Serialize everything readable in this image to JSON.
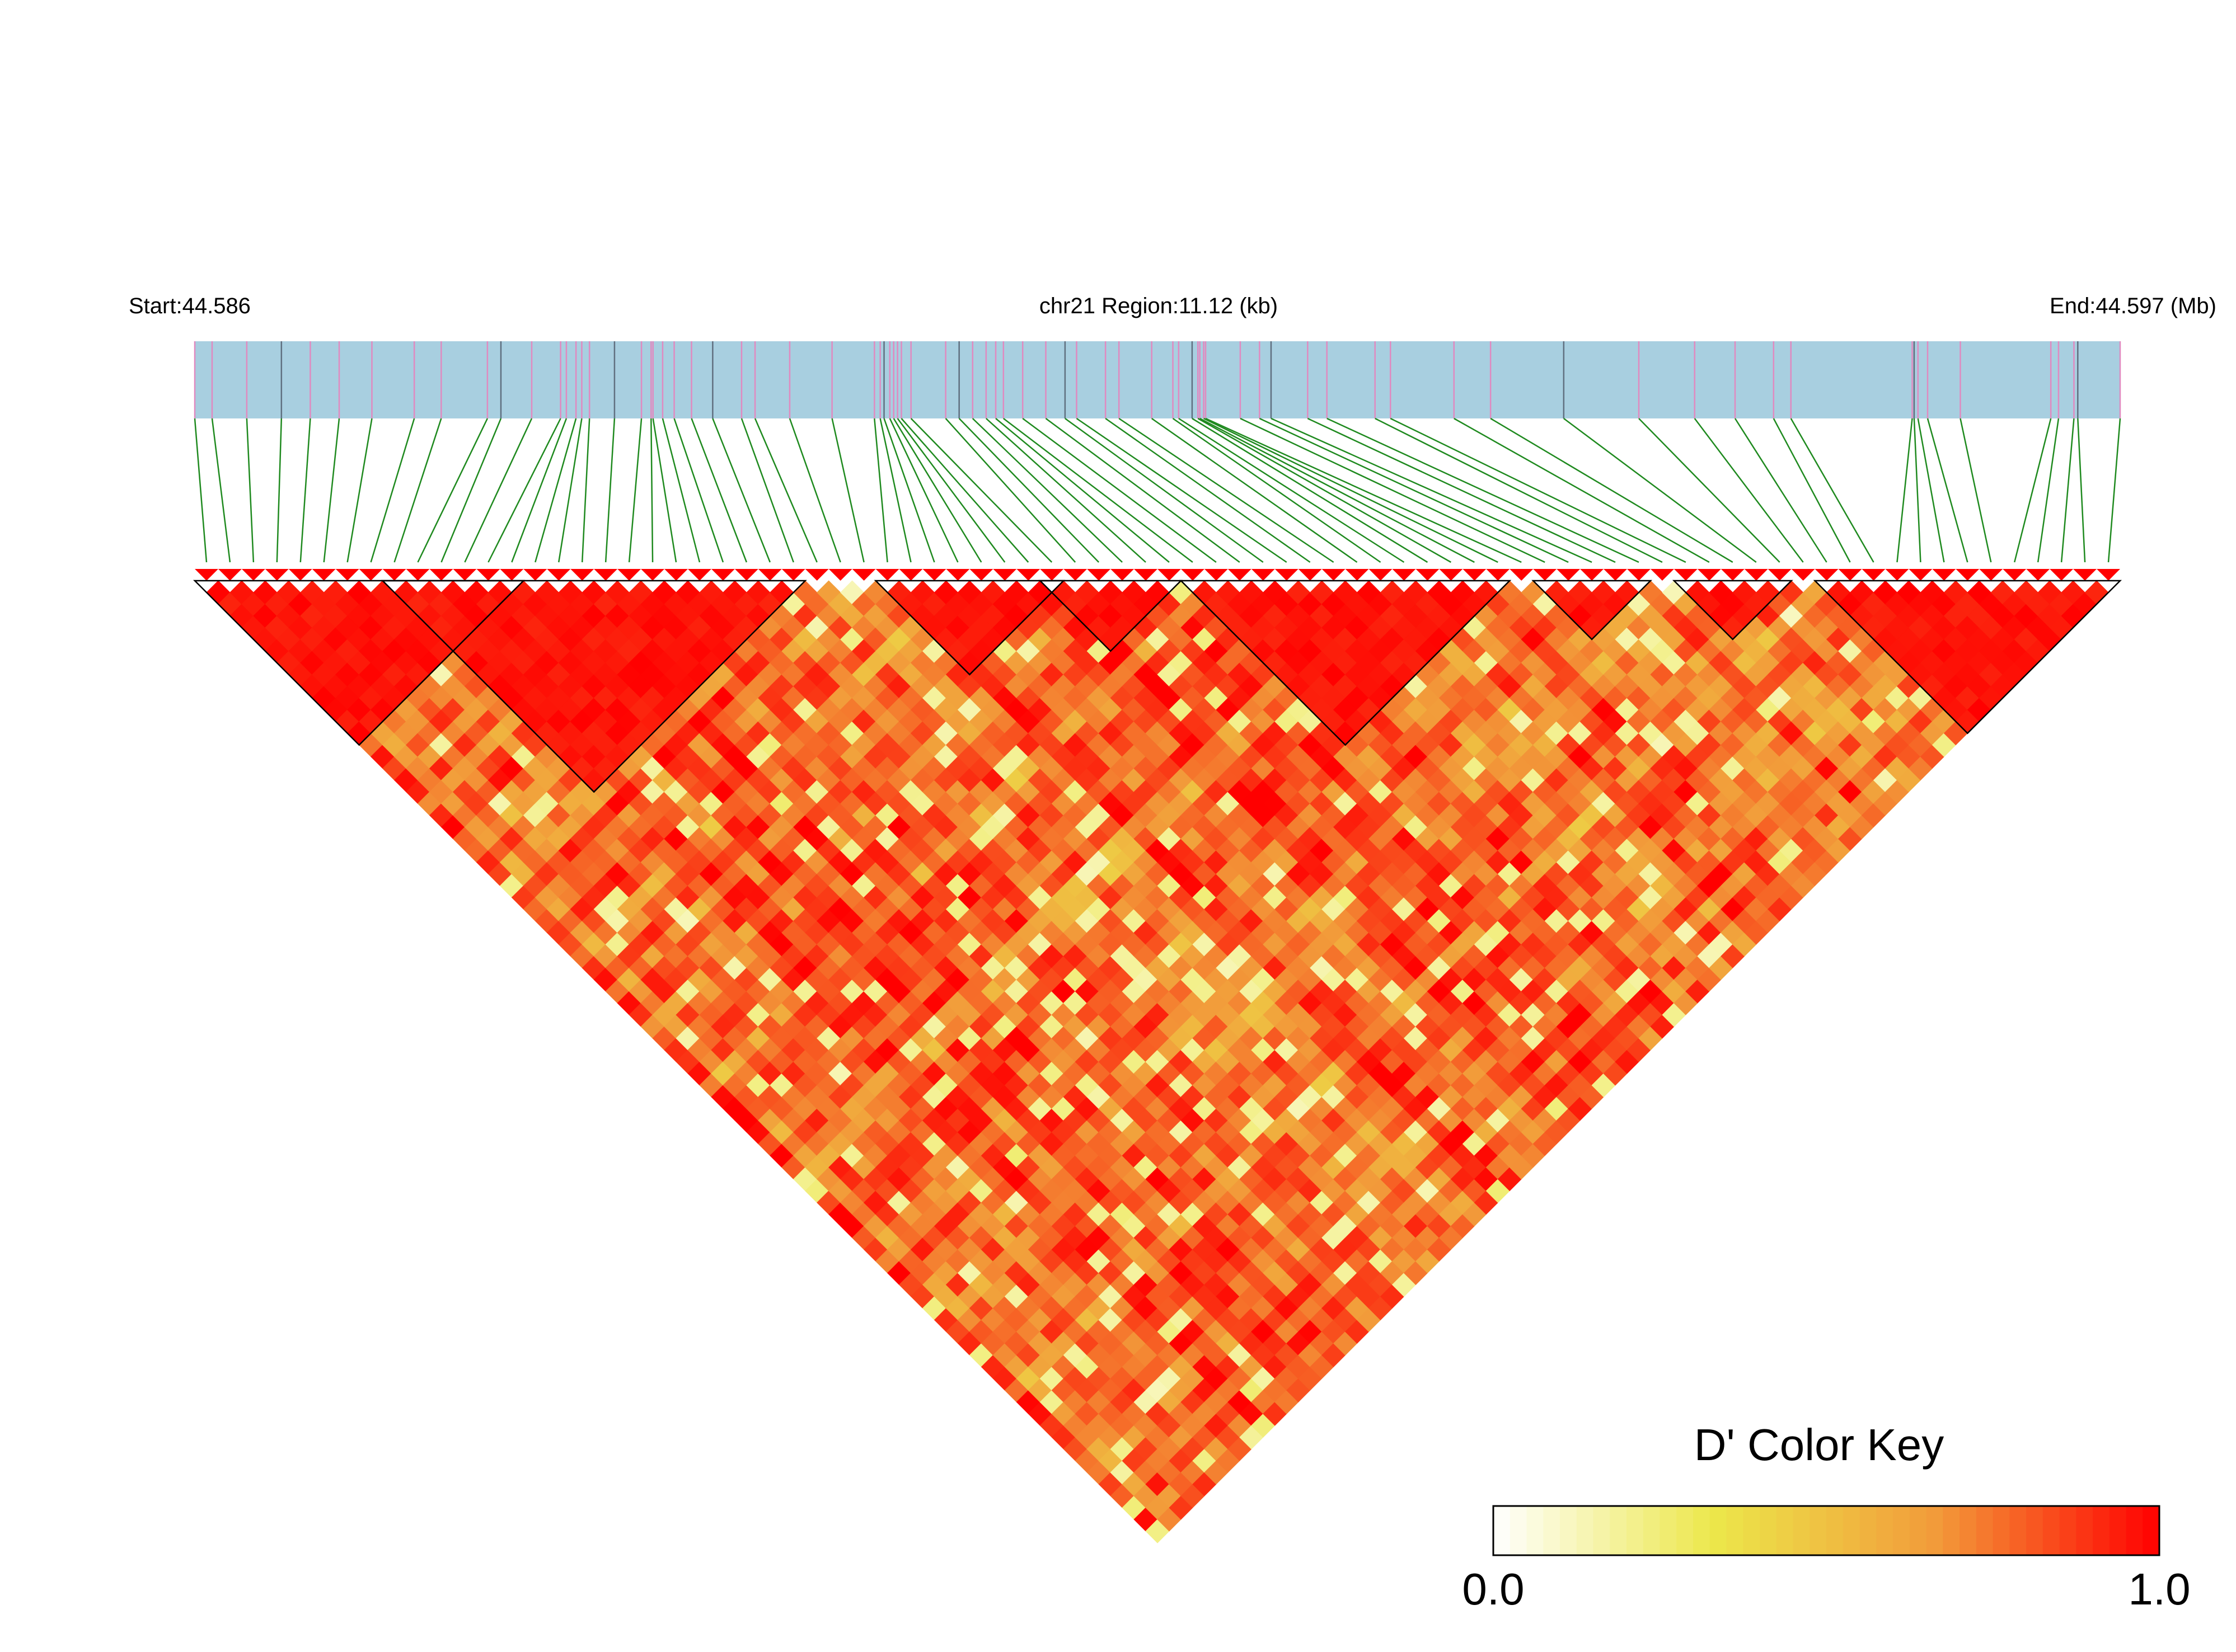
{
  "header": {
    "start_label": "Start:44.586",
    "region_label": "chr21 Region:11.12 (kb)",
    "end_label": "End:44.597 (Mb)"
  },
  "color_key": {
    "title": "D' Color Key",
    "min_label": "0.0",
    "max_label": "1.0",
    "min": 0.0,
    "max": 1.0,
    "colors": [
      "#ffffff",
      "#ece74a",
      "#f29a3a",
      "#ff0000"
    ]
  },
  "colors": {
    "track_fill": "#a8cfe0",
    "snp_tick": "#e08ac0",
    "connector_line": "#1f8a1f",
    "block_outline": "#000000"
  },
  "chart_data": {
    "type": "heatmap",
    "measure": "D'",
    "chromosome": "chr21",
    "region_start_mb": 44.586,
    "region_end_mb": 44.597,
    "region_kb": 11.12,
    "snp_count": 82,
    "snp_fraction_positions": [
      0.0,
      0.009,
      0.027,
      0.045,
      0.06,
      0.075,
      0.092,
      0.114,
      0.128,
      0.152,
      0.159,
      0.175,
      0.19,
      0.193,
      0.198,
      0.201,
      0.205,
      0.218,
      0.232,
      0.237,
      0.238,
      0.243,
      0.249,
      0.258,
      0.269,
      0.284,
      0.291,
      0.309,
      0.331,
      0.353,
      0.356,
      0.358,
      0.361,
      0.363,
      0.365,
      0.367,
      0.372,
      0.39,
      0.397,
      0.404,
      0.411,
      0.416,
      0.42,
      0.43,
      0.442,
      0.452,
      0.458,
      0.473,
      0.48,
      0.497,
      0.508,
      0.511,
      0.518,
      0.521,
      0.522,
      0.524,
      0.525,
      0.543,
      0.553,
      0.559,
      0.578,
      0.588,
      0.613,
      0.621,
      0.654,
      0.673,
      0.711,
      0.75,
      0.779,
      0.8,
      0.82,
      0.829,
      0.892,
      0.893,
      0.895,
      0.9,
      0.917,
      0.964,
      0.968,
      0.976,
      0.978,
      1.0
    ],
    "ld_blocks": [
      [
        0,
        14
      ],
      [
        8,
        26
      ],
      [
        29,
        37
      ],
      [
        36,
        42
      ],
      [
        42,
        56
      ],
      [
        57,
        62
      ],
      [
        63,
        68
      ],
      [
        69,
        82
      ]
    ],
    "high_ld_fraction": 0.55
  }
}
